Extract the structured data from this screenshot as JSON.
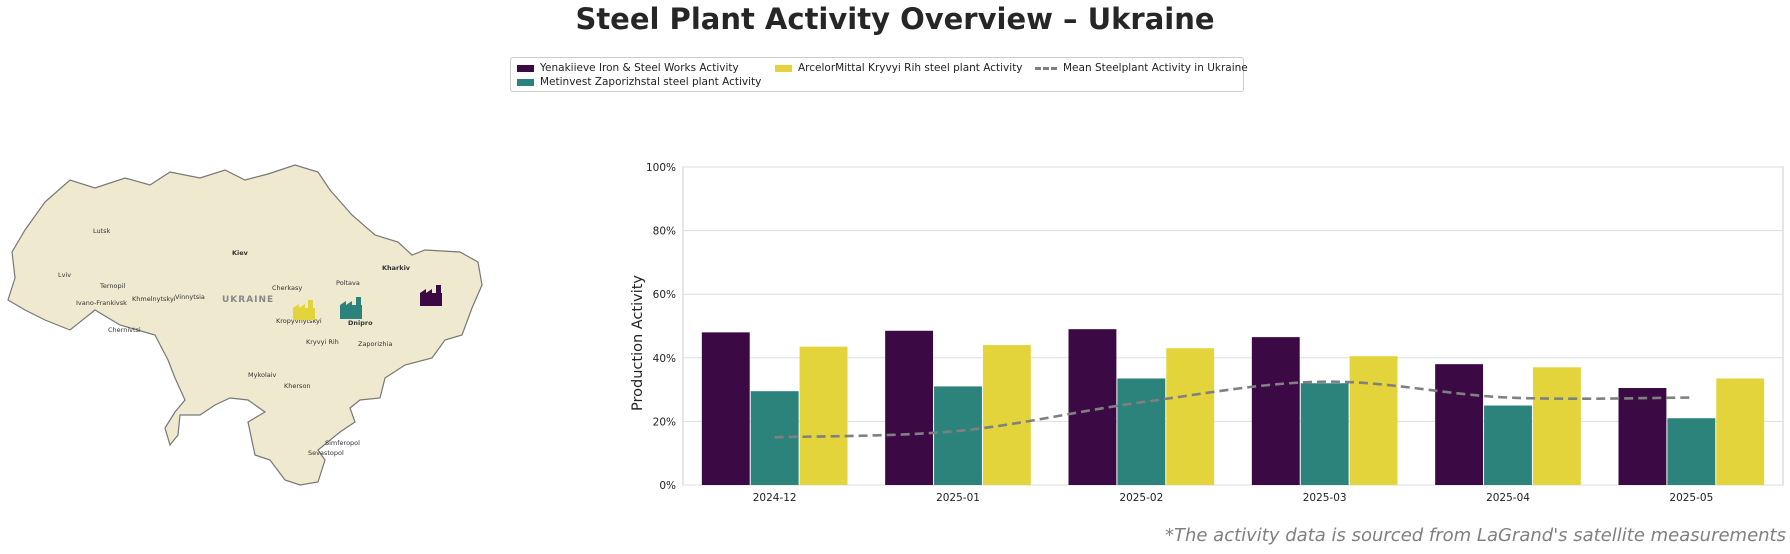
{
  "title": "Steel Plant Activity Overview – Ukraine",
  "legend": {
    "items": [
      {
        "label": "Yenakiieve Iron & Steel Works Activity",
        "color": "#3b0a45",
        "kind": "bar"
      },
      {
        "label": "Metinvest Zaporizhstal steel plant Activity",
        "color": "#2b837c",
        "kind": "bar"
      },
      {
        "label": "ArcelorMittal Kryvyi Rih steel plant Activity",
        "color": "#e2d43a",
        "kind": "bar"
      },
      {
        "label": "Mean Steelplant Activity in Ukraine",
        "color": "#808080",
        "kind": "dashed-line"
      }
    ]
  },
  "map": {
    "country_label": "UKRAINE",
    "cities": [
      "Lutsk",
      "Kiev",
      "Kharkiv",
      "Lviv",
      "Ternopil",
      "Khmelnytskyi",
      "Vinnytsia",
      "Cherkasy",
      "Poltava",
      "Ivano-Frankivsk",
      "Chernivtsi",
      "Kropyvnytskyi",
      "Dnipro",
      "Kryvyi Rih",
      "Zaporizhia",
      "Mykolaiv",
      "Kherson",
      "Simferopol",
      "Sevastopol"
    ],
    "plant_icons": [
      {
        "name": "arcelormittal-kryvyi-rih",
        "color": "#e2d43a",
        "icon": "factory-icon"
      },
      {
        "name": "metinvest-zaporizhstal",
        "color": "#2b837c",
        "icon": "factory-icon"
      },
      {
        "name": "yenakiieve",
        "color": "#3b0a45",
        "icon": "factory-icon"
      }
    ]
  },
  "chart_data": {
    "type": "bar",
    "categories": [
      "2024-12",
      "2025-01",
      "2025-02",
      "2025-03",
      "2025-04",
      "2025-05"
    ],
    "series": [
      {
        "name": "Yenakiieve Iron & Steel Works Activity",
        "color": "#3b0a45",
        "values": [
          48,
          48.5,
          49,
          46.5,
          38,
          30.5
        ]
      },
      {
        "name": "Metinvest Zaporizhstal steel plant Activity",
        "color": "#2b837c",
        "values": [
          29.5,
          31,
          33.5,
          32,
          25,
          21
        ]
      },
      {
        "name": "ArcelorMittal Kryvyi Rih steel plant Activity",
        "color": "#e2d43a",
        "values": [
          43.5,
          44,
          43,
          40.5,
          37,
          33.5
        ]
      }
    ],
    "line_series": {
      "name": "Mean Steelplant Activity in Ukraine",
      "color": "#808080",
      "style": "dashed",
      "values": [
        15,
        17,
        26,
        32.5,
        27.5,
        27.5
      ]
    },
    "ylabel": "Production Activity",
    "xlabel": "",
    "ylim": [
      0,
      100
    ],
    "yticks": [
      "0%",
      "20%",
      "40%",
      "60%",
      "80%",
      "100%"
    ],
    "grid": true
  },
  "footnote": "*The activity data is sourced from LaGrand's satellite measurements"
}
